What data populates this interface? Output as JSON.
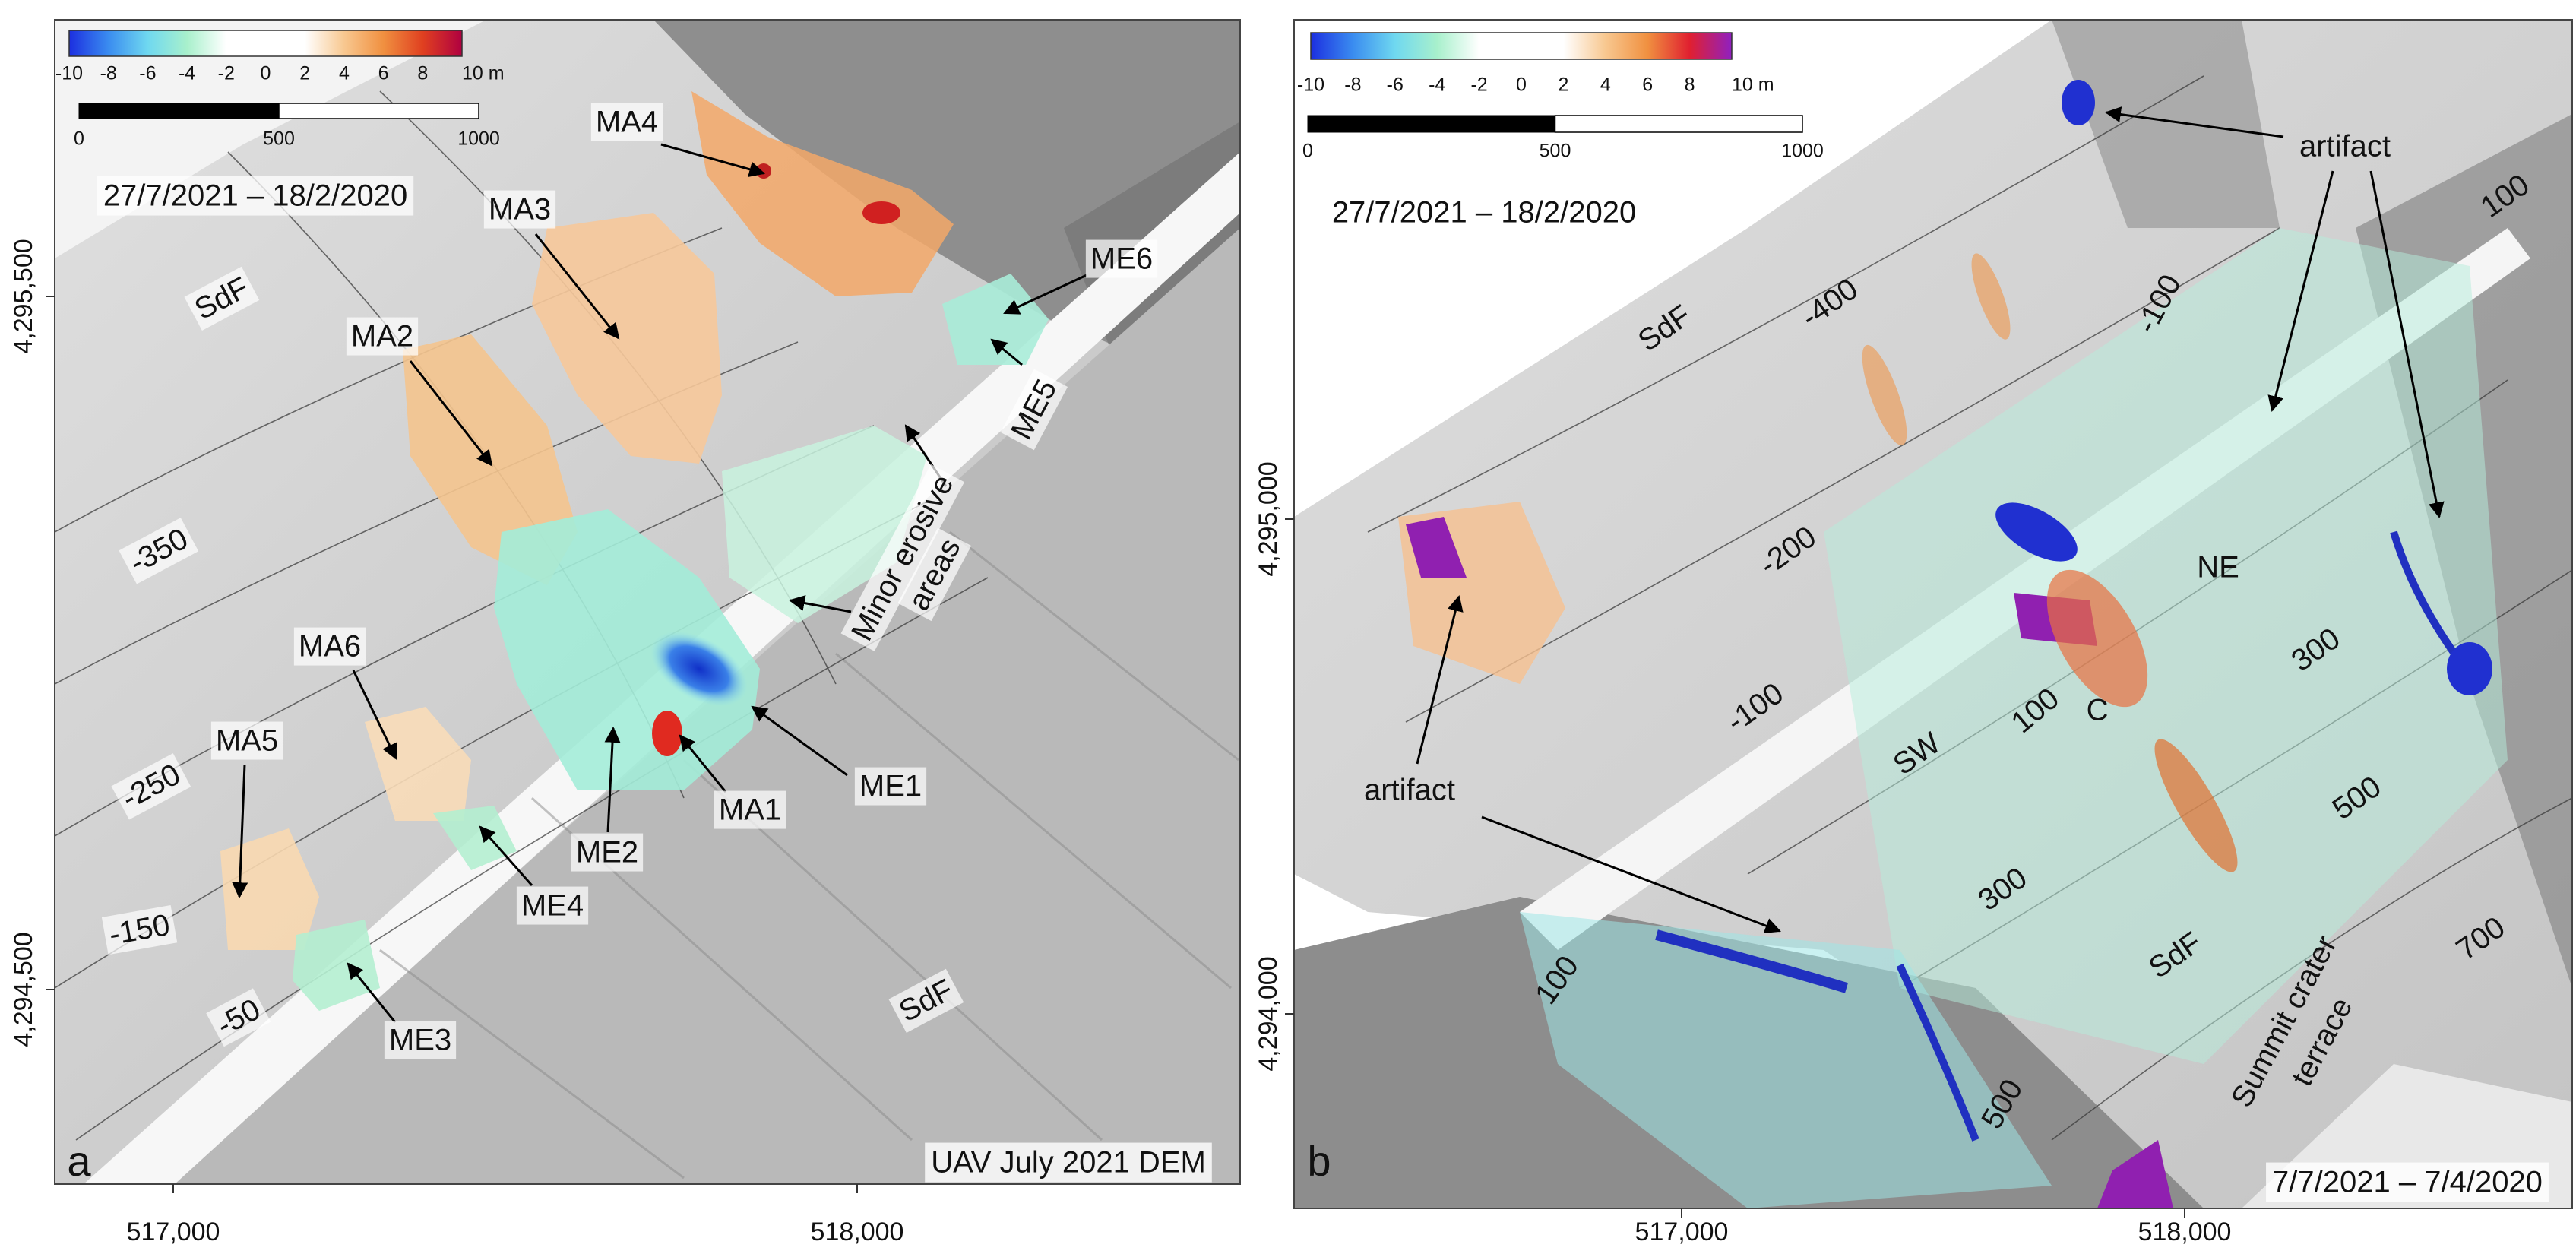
{
  "panels": [
    {
      "letter": "a",
      "colorbar": [
        "-10",
        "-8",
        "-6",
        "-4",
        "-2",
        "0",
        "2",
        "4",
        "6",
        "8",
        "10 m"
      ],
      "scalebar": [
        "0",
        "500",
        "1000"
      ],
      "date": "27/7/2021 – 18/2/2020",
      "footer": "UAV July 2021 DEM",
      "yticks": [
        "4,295,500",
        "4,294,500"
      ],
      "xticks": [
        "517,000",
        "518,000"
      ],
      "labels": [
        "SdF",
        "MA4",
        "MA3",
        "ME6",
        "MA2",
        "ME5",
        "-350",
        "Minor erosive",
        "areas",
        "MA6",
        "MA5",
        "-250",
        "ME1",
        "MA1",
        "ME2",
        "ME4",
        "-150",
        "ME3",
        "-50",
        "SdF"
      ]
    },
    {
      "letter": "b",
      "colorbar": [
        "-10",
        "-8",
        "-6",
        "-4",
        "-2",
        "0",
        "2",
        "4",
        "6",
        "8",
        "10 m"
      ],
      "scalebar": [
        "0",
        "500",
        "1000"
      ],
      "date": "27/7/2021 – 18/2/2020",
      "footer": "7/7/2021 – 7/4/2020",
      "yticks": [
        "4,295,000",
        "4,294,000"
      ],
      "xticks": [
        "517,000",
        "518,000"
      ],
      "labels": [
        "artifact",
        "SdF",
        "-400",
        "-100",
        "100",
        "-200",
        "NE",
        "100",
        "C",
        "300",
        "-100",
        "artifact",
        "SW",
        "500",
        "300",
        "SdF",
        "700",
        "100",
        "Summit crater",
        "terrace",
        "500"
      ]
    }
  ]
}
